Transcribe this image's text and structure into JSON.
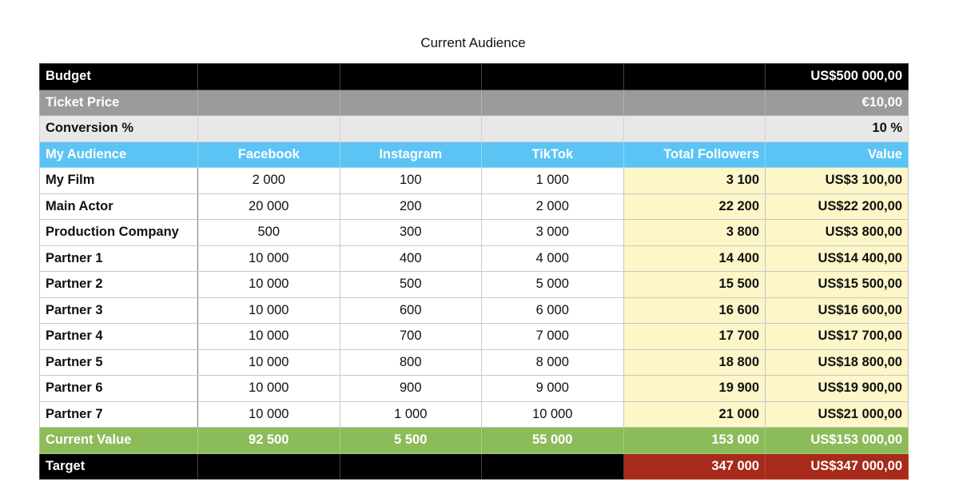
{
  "title": "Current Audience",
  "rows": {
    "budget": {
      "label": "Budget",
      "value": "US$500 000,00"
    },
    "ticket": {
      "label": "Ticket Price",
      "value": "€10,00"
    },
    "conversion": {
      "label": "Conversion %",
      "value": "10 %"
    }
  },
  "header": [
    "My Audience",
    "Facebook",
    "Instagram",
    "TikTok",
    "Total Followers",
    "Value"
  ],
  "data": [
    [
      "My Film",
      "2 000",
      "100",
      "1 000",
      "3 100",
      "US$3 100,00"
    ],
    [
      "Main Actor",
      "20 000",
      "200",
      "2 000",
      "22 200",
      "US$22 200,00"
    ],
    [
      "Production Company",
      "500",
      "300",
      "3 000",
      "3 800",
      "US$3 800,00"
    ],
    [
      "Partner 1",
      "10 000",
      "400",
      "4 000",
      "14 400",
      "US$14 400,00"
    ],
    [
      "Partner 2",
      "10 000",
      "500",
      "5 000",
      "15 500",
      "US$15 500,00"
    ],
    [
      "Partner 3",
      "10 000",
      "600",
      "6 000",
      "16 600",
      "US$16 600,00"
    ],
    [
      "Partner 4",
      "10 000",
      "700",
      "7 000",
      "17 700",
      "US$17 700,00"
    ],
    [
      "Partner 5",
      "10 000",
      "800",
      "8 000",
      "18 800",
      "US$18 800,00"
    ],
    [
      "Partner 6",
      "10 000",
      "900",
      "9 000",
      "19 900",
      "US$19 900,00"
    ],
    [
      "Partner 7",
      "10 000",
      "1 000",
      "10 000",
      "21 000",
      "US$21 000,00"
    ]
  ],
  "current": [
    "Current Value",
    "92 500",
    "5 500",
    "55 000",
    "153 000",
    "US$153 000,00"
  ],
  "target": {
    "label": "Target",
    "total": "347 000",
    "value": "US$347 000,00"
  },
  "colors": {
    "header_blue": "#5bc4f5",
    "current_green": "#8cbc5a",
    "target_red": "#a72a1b",
    "highlight_yellow": "#fcf6c8",
    "ticket_gray": "#9b9b9b"
  }
}
